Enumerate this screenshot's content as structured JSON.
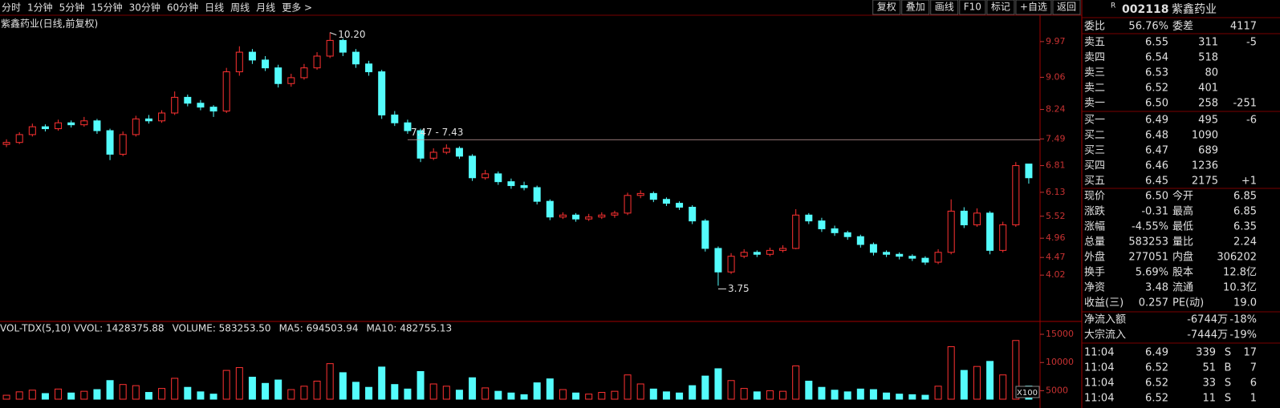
{
  "toolbar": {
    "periods": [
      "分时",
      "1分钟",
      "5分钟",
      "15分钟",
      "30分钟",
      "60分钟",
      "日线",
      "周线",
      "月线",
      "更多 >"
    ],
    "tools": [
      "复权",
      "叠加",
      "画线",
      "F10",
      "标记",
      "+自选",
      "返回"
    ]
  },
  "chart_data": [
    {
      "type": "candlestick",
      "title": "紫鑫药业(日线,前复权)",
      "up_color": "#ff3232",
      "down_color": "#54fcfc",
      "candles": [
        [
          7.35,
          7.48,
          7.28,
          7.4
        ],
        [
          7.4,
          7.66,
          7.36,
          7.6
        ],
        [
          7.6,
          7.88,
          7.55,
          7.8
        ],
        [
          7.8,
          7.86,
          7.68,
          7.75
        ],
        [
          7.75,
          7.98,
          7.7,
          7.9
        ],
        [
          7.9,
          7.96,
          7.78,
          7.85
        ],
        [
          7.85,
          8.05,
          7.8,
          7.95
        ],
        [
          7.95,
          8.0,
          7.62,
          7.7
        ],
        [
          7.7,
          7.75,
          6.95,
          7.1
        ],
        [
          7.1,
          7.68,
          7.05,
          7.6
        ],
        [
          7.6,
          8.08,
          7.55,
          8.0
        ],
        [
          8.0,
          8.1,
          7.88,
          7.95
        ],
        [
          7.95,
          8.22,
          7.9,
          8.15
        ],
        [
          8.15,
          8.7,
          8.1,
          8.55
        ],
        [
          8.55,
          8.62,
          8.32,
          8.4
        ],
        [
          8.4,
          8.48,
          8.22,
          8.3
        ],
        [
          8.3,
          8.35,
          8.05,
          8.2
        ],
        [
          8.2,
          9.3,
          8.15,
          9.2
        ],
        [
          9.2,
          9.85,
          9.1,
          9.7
        ],
        [
          9.7,
          9.78,
          9.4,
          9.5
        ],
        [
          9.5,
          9.6,
          9.22,
          9.3
        ],
        [
          9.3,
          9.38,
          8.8,
          8.9
        ],
        [
          8.9,
          9.15,
          8.82,
          9.05
        ],
        [
          9.05,
          9.4,
          9.0,
          9.3
        ],
        [
          9.3,
          9.7,
          9.25,
          9.6
        ],
        [
          9.6,
          10.2,
          9.55,
          10.0
        ],
        [
          10.0,
          10.05,
          9.6,
          9.7
        ],
        [
          9.7,
          9.78,
          9.3,
          9.4
        ],
        [
          9.4,
          9.48,
          9.1,
          9.2
        ],
        [
          9.2,
          9.25,
          8.0,
          8.1
        ],
        [
          8.1,
          8.2,
          7.82,
          7.9
        ],
        [
          7.9,
          7.98,
          7.62,
          7.7
        ],
        [
          7.7,
          7.75,
          6.9,
          7.0
        ],
        [
          7.0,
          7.25,
          6.95,
          7.15
        ],
        [
          7.15,
          7.35,
          7.1,
          7.25
        ],
        [
          7.25,
          7.3,
          6.98,
          7.05
        ],
        [
          7.05,
          7.1,
          6.42,
          6.5
        ],
        [
          6.5,
          6.7,
          6.45,
          6.6
        ],
        [
          6.6,
          6.66,
          6.32,
          6.4
        ],
        [
          6.4,
          6.48,
          6.22,
          6.3
        ],
        [
          6.3,
          6.4,
          6.18,
          6.25
        ],
        [
          6.25,
          6.3,
          5.82,
          5.9
        ],
        [
          5.9,
          5.95,
          5.42,
          5.5
        ],
        [
          5.5,
          5.62,
          5.45,
          5.55
        ],
        [
          5.55,
          5.6,
          5.38,
          5.45
        ],
        [
          5.45,
          5.58,
          5.4,
          5.5
        ],
        [
          5.5,
          5.62,
          5.45,
          5.55
        ],
        [
          5.55,
          5.66,
          5.48,
          5.6
        ],
        [
          5.6,
          6.12,
          5.55,
          6.05
        ],
        [
          6.05,
          6.18,
          5.98,
          6.1
        ],
        [
          6.1,
          6.15,
          5.88,
          5.95
        ],
        [
          5.95,
          6.0,
          5.78,
          5.85
        ],
        [
          5.85,
          5.9,
          5.68,
          5.75
        ],
        [
          5.75,
          5.8,
          5.32,
          5.4
        ],
        [
          5.4,
          5.45,
          4.62,
          4.7
        ],
        [
          4.7,
          4.75,
          3.75,
          4.1
        ],
        [
          4.1,
          4.58,
          4.05,
          4.5
        ],
        [
          4.5,
          4.68,
          4.45,
          4.6
        ],
        [
          4.6,
          4.65,
          4.48,
          4.55
        ],
        [
          4.55,
          4.72,
          4.5,
          4.65
        ],
        [
          4.65,
          4.78,
          4.6,
          4.7
        ],
        [
          4.7,
          5.7,
          4.68,
          5.55
        ],
        [
          5.55,
          5.6,
          5.32,
          5.4
        ],
        [
          5.4,
          5.48,
          5.12,
          5.2
        ],
        [
          5.2,
          5.28,
          5.02,
          5.1
        ],
        [
          5.1,
          5.15,
          4.92,
          5.0
        ],
        [
          5.0,
          5.05,
          4.72,
          4.8
        ],
        [
          4.8,
          4.85,
          4.52,
          4.6
        ],
        [
          4.6,
          4.65,
          4.48,
          4.55
        ],
        [
          4.55,
          4.6,
          4.42,
          4.5
        ],
        [
          4.5,
          4.55,
          4.38,
          4.45
        ],
        [
          4.45,
          4.5,
          4.28,
          4.35
        ],
        [
          4.35,
          4.68,
          4.3,
          4.6
        ],
        [
          4.6,
          5.95,
          4.55,
          5.65
        ],
        [
          5.65,
          5.75,
          5.22,
          5.3
        ],
        [
          5.3,
          5.72,
          5.25,
          5.6
        ],
        [
          5.6,
          5.65,
          4.55,
          4.65
        ],
        [
          4.65,
          5.38,
          4.6,
          5.3
        ],
        [
          5.3,
          6.9,
          5.25,
          6.81
        ],
        [
          6.85,
          6.85,
          6.35,
          6.5
        ]
      ],
      "ylim": [
        2.86,
        10.58
      ],
      "yticks": [
        9.97,
        9.06,
        8.24,
        7.49,
        6.81,
        6.13,
        5.52,
        4.96,
        4.47,
        4.02
      ],
      "hline": 7.47,
      "hline_label": "7.47 - 7.43",
      "high_label": "10.20",
      "low_label": "3.75"
    },
    {
      "type": "bar",
      "title": "VOL-TDX(5,10) VVOL: 1428375.88",
      "legend": [
        "VOLUME: 583253.50",
        "MA5: 694503.94",
        "MA10: 482755.13"
      ],
      "legend_colors": [
        "#ffff33",
        "#ffff33",
        "#ff44ff"
      ],
      "unit_label": "X100",
      "values": [
        4200,
        4800,
        5100,
        4500,
        5300,
        4600,
        4900,
        5200,
        6800,
        6100,
        5900,
        4700,
        5400,
        7200,
        5600,
        4800,
        4400,
        8600,
        9100,
        7400,
        6300,
        6900,
        5200,
        5800,
        6700,
        9800,
        8200,
        6500,
        5600,
        9200,
        6100,
        5300,
        8400,
        6200,
        5800,
        5100,
        7300,
        5500,
        4900,
        4600,
        4300,
        6400,
        7100,
        5200,
        4600,
        4400,
        4700,
        4900,
        7800,
        6200,
        5300,
        4800,
        4600,
        5900,
        7600,
        8900,
        6800,
        5400,
        4800,
        5000,
        4900,
        9400,
        6700,
        5600,
        5100,
        4800,
        5300,
        5200,
        4600,
        4400,
        4300,
        4200,
        5800,
        12800,
        8600,
        9300,
        10200,
        7800,
        13900,
        5833
      ],
      "ylim": [
        3500,
        16000
      ],
      "yticks": [
        15000,
        10000,
        5000
      ]
    }
  ],
  "panel": {
    "badge": "R",
    "code": "002118",
    "name": "紫鑫药业",
    "ratio": [
      {
        "cells": [
          "委比",
          "56.76%",
          "委差",
          "4117"
        ],
        "colors": [
          "#e0e0e0",
          "#ff4040",
          "#e0e0e0",
          "#ff4040"
        ]
      }
    ],
    "asks": [
      {
        "cells": [
          "卖五",
          "6.55",
          "311",
          "-5"
        ],
        "colors": [
          "#e0e0e0",
          "#30e030",
          "#ffff33",
          "#30e030"
        ]
      },
      {
        "cells": [
          "卖四",
          "6.54",
          "518"
        ],
        "colors": [
          "#e0e0e0",
          "#30e030",
          "#ffff33"
        ]
      },
      {
        "cells": [
          "卖三",
          "6.53",
          "80"
        ],
        "colors": [
          "#e0e0e0",
          "#30e030",
          "#ffff33"
        ]
      },
      {
        "cells": [
          "卖二",
          "6.52",
          "401"
        ],
        "colors": [
          "#e0e0e0",
          "#30e030",
          "#ffff33"
        ]
      },
      {
        "cells": [
          "卖一",
          "6.50",
          "258",
          "-251"
        ],
        "colors": [
          "#e0e0e0",
          "#30e030",
          "#ffff33",
          "#30e030"
        ]
      }
    ],
    "bids": [
      {
        "cells": [
          "买一",
          "6.49",
          "495",
          "-6"
        ],
        "colors": [
          "#e0e0e0",
          "#30e030",
          "#ffff33",
          "#30e030"
        ]
      },
      {
        "cells": [
          "买二",
          "6.48",
          "1090"
        ],
        "colors": [
          "#e0e0e0",
          "#30e030",
          "#ffff33"
        ]
      },
      {
        "cells": [
          "买三",
          "6.47",
          "689"
        ],
        "colors": [
          "#e0e0e0",
          "#30e030",
          "#ffff33"
        ]
      },
      {
        "cells": [
          "买四",
          "6.46",
          "1236"
        ],
        "colors": [
          "#e0e0e0",
          "#30e030",
          "#ffff33"
        ]
      },
      {
        "cells": [
          "买五",
          "6.45",
          "2175",
          "+1"
        ],
        "colors": [
          "#e0e0e0",
          "#30e030",
          "#ffff33",
          "#ff4040"
        ]
      }
    ],
    "quote": [
      {
        "cells": [
          "现价",
          "6.50",
          "今开",
          "6.85"
        ],
        "colors": [
          "#e0e0e0",
          "#30e030",
          "#e0e0e0",
          "#ff4040"
        ]
      },
      {
        "cells": [
          "涨跌",
          "-0.31",
          "最高",
          "6.85"
        ],
        "colors": [
          "#e0e0e0",
          "#30e030",
          "#e0e0e0",
          "#ff4040"
        ]
      },
      {
        "cells": [
          "涨幅",
          "-4.55%",
          "最低",
          "6.35"
        ],
        "colors": [
          "#e0e0e0",
          "#30e030",
          "#e0e0e0",
          "#30e030"
        ]
      },
      {
        "cells": [
          "总量",
          "583253",
          "量比",
          "2.24"
        ],
        "colors": [
          "#e0e0e0",
          "#ffff33",
          "#e0e0e0",
          "#ff4040"
        ]
      },
      {
        "cells": [
          "外盘",
          "277051",
          "内盘",
          "306202"
        ],
        "colors": [
          "#e0e0e0",
          "#ff4040",
          "#e0e0e0",
          "#30e030"
        ]
      },
      {
        "cells": [
          "换手",
          "5.69%",
          "股本",
          "12.8亿"
        ],
        "colors": [
          "#e0e0e0",
          "#e0e0e0",
          "#e0e0e0",
          "#e0e0e0"
        ]
      },
      {
        "cells": [
          "净资",
          "3.48",
          "流通",
          "10.3亿"
        ],
        "colors": [
          "#e0e0e0",
          "#e0e0e0",
          "#e0e0e0",
          "#e0e0e0"
        ]
      },
      {
        "cells": [
          "收益(三)",
          "0.257",
          "PE(动)",
          "19.0"
        ],
        "colors": [
          "#e0e0e0",
          "#e0e0e0",
          "#e0e0e0",
          "#e0e0e0"
        ]
      }
    ],
    "flows": [
      {
        "cells": [
          "净流入额",
          "-6744万",
          "-18%"
        ],
        "colors": [
          "#e0e0e0",
          "#30e030",
          "#30e030"
        ]
      },
      {
        "cells": [
          "大宗流入",
          "-7444万",
          "-19%"
        ],
        "colors": [
          "#e0e0e0",
          "#30e030",
          "#30e030"
        ]
      }
    ],
    "ticks": [
      {
        "cells": [
          "11:04",
          "6.49",
          "339",
          "S",
          "17"
        ],
        "colors": [
          "#e0e0e0",
          "#30e030",
          "#ffff33",
          "#30e030",
          "#a0a0a0"
        ]
      },
      {
        "cells": [
          "11:04",
          "6.52",
          "51",
          "B",
          "7"
        ],
        "colors": [
          "#e0e0e0",
          "#30e030",
          "#ffff33",
          "#ff4040",
          "#a0a0a0"
        ]
      },
      {
        "cells": [
          "11:04",
          "6.52",
          "33",
          "S",
          "6"
        ],
        "colors": [
          "#e0e0e0",
          "#30e030",
          "#ffff33",
          "#30e030",
          "#a0a0a0"
        ]
      },
      {
        "cells": [
          "11:04",
          "6.52",
          "11",
          "S",
          "1"
        ],
        "colors": [
          "#e0e0e0",
          "#30e030",
          "#ffff33",
          "#30e030",
          "#a0a0a0"
        ]
      }
    ]
  }
}
